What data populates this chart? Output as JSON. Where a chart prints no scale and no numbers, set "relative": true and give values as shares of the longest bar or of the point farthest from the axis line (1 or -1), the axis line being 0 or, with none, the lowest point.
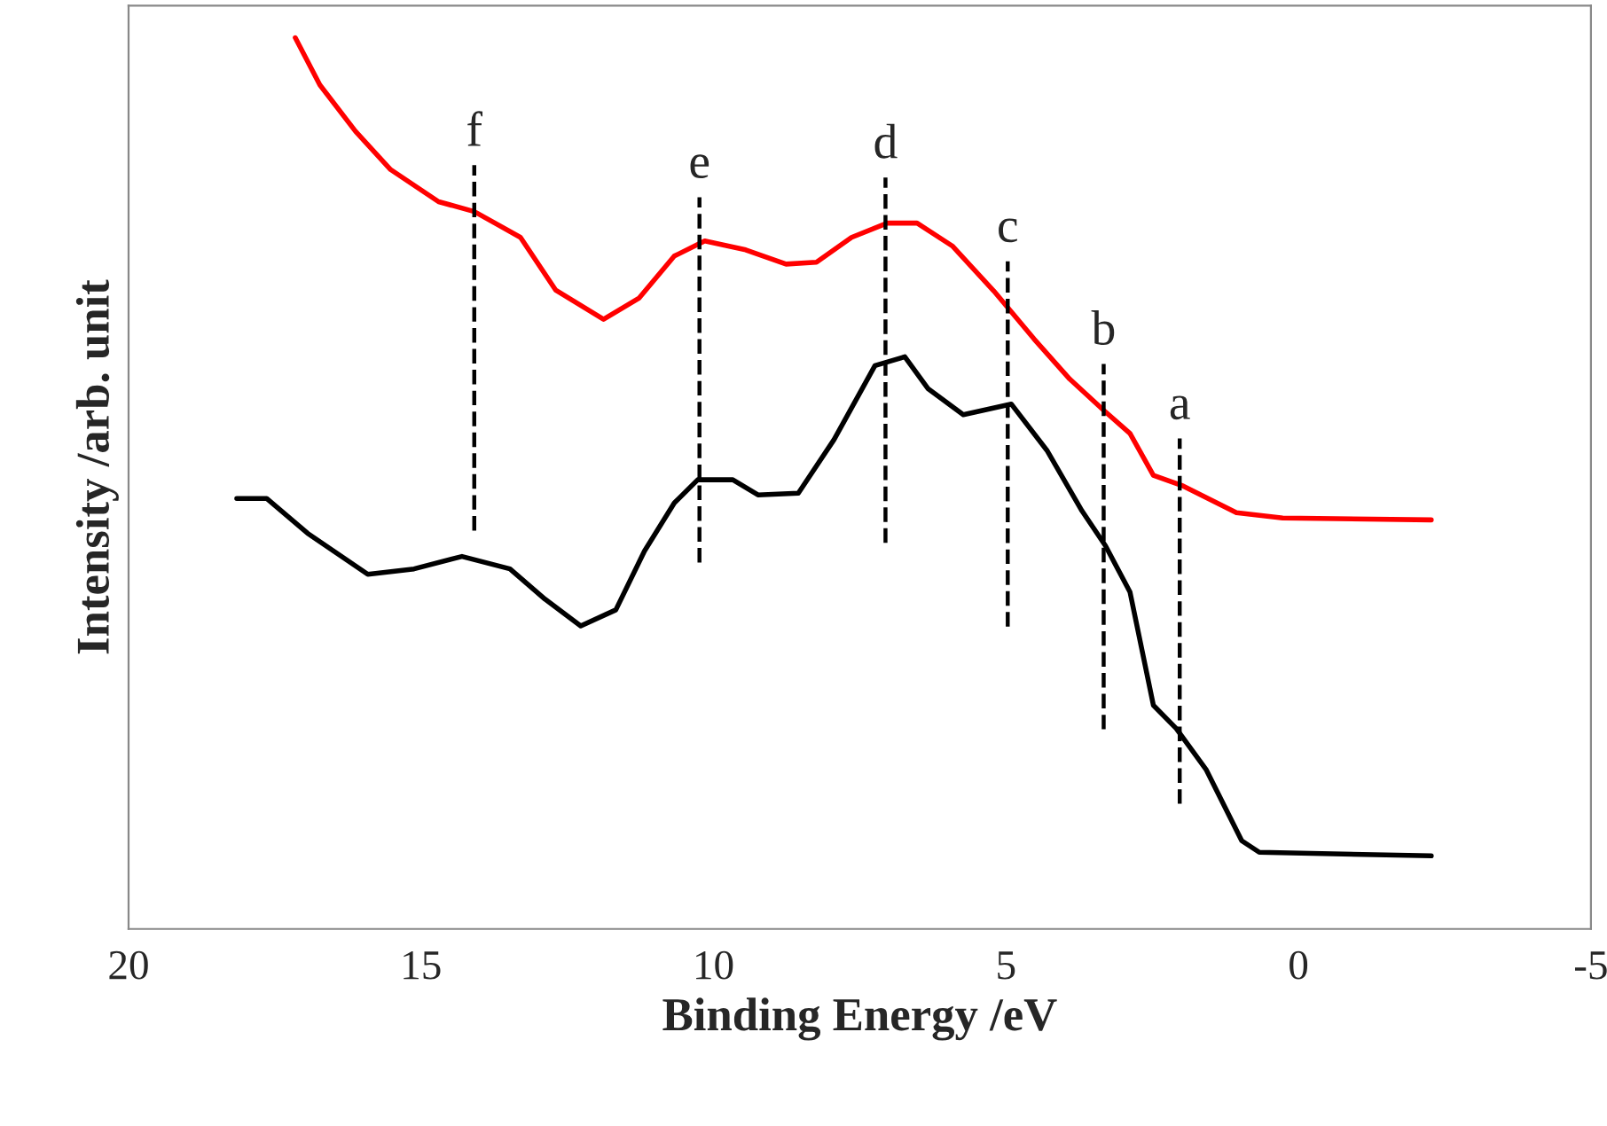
{
  "chart_data": {
    "type": "line",
    "relative": true,
    "xlabel": "Binding Energy /eV",
    "ylabel": "Intensity /arb. unit",
    "xlim": [
      20,
      -5
    ],
    "xticks": [
      20,
      15,
      10,
      5,
      0,
      -5
    ],
    "grid": false,
    "legend": false,
    "tick_labels": "x",
    "line_style": "solid",
    "marker": "none",
    "series": [
      {
        "color": "#ff0000",
        "x": [
          17.15,
          16.73,
          16.12,
          15.52,
          14.7,
          14.09,
          13.3,
          12.7,
          11.88,
          11.27,
          10.67,
          10.15,
          9.45,
          8.76,
          8.24,
          7.64,
          7.03,
          6.52,
          5.91,
          5.21,
          4.52,
          3.91,
          3.33,
          2.88,
          2.48,
          1.97,
          1.06,
          0.27,
          -2.27
        ],
        "values": [
          1.0,
          0.947,
          0.895,
          0.852,
          0.816,
          0.805,
          0.776,
          0.717,
          0.684,
          0.708,
          0.755,
          0.772,
          0.762,
          0.746,
          0.748,
          0.776,
          0.792,
          0.792,
          0.766,
          0.716,
          0.662,
          0.617,
          0.582,
          0.556,
          0.509,
          0.497,
          0.467,
          0.461,
          0.459
        ]
      },
      {
        "color": "#000000",
        "x": [
          18.15,
          17.64,
          16.94,
          15.91,
          15.12,
          14.3,
          13.48,
          12.88,
          12.27,
          11.67,
          11.18,
          10.67,
          10.27,
          9.67,
          9.24,
          8.55,
          7.94,
          7.24,
          6.73,
          6.33,
          5.73,
          4.91,
          4.3,
          3.7,
          3.3,
          2.88,
          2.48,
          2.09,
          1.58,
          0.97,
          0.67,
          -2.27
        ],
        "values": [
          0.483,
          0.483,
          0.444,
          0.398,
          0.404,
          0.418,
          0.404,
          0.37,
          0.34,
          0.358,
          0.424,
          0.478,
          0.504,
          0.504,
          0.487,
          0.489,
          0.549,
          0.632,
          0.642,
          0.606,
          0.577,
          0.589,
          0.537,
          0.469,
          0.43,
          0.378,
          0.251,
          0.225,
          0.179,
          0.099,
          0.086,
          0.082
        ]
      }
    ],
    "ref_lines": [
      {
        "axis": "x",
        "value": 14.09,
        "label": "f",
        "color": "#000000",
        "line_style": "dashed"
      },
      {
        "axis": "x",
        "value": 10.24,
        "label": "e",
        "color": "#000000",
        "line_style": "dashed"
      },
      {
        "axis": "x",
        "value": 7.06,
        "label": "d",
        "color": "#000000",
        "line_style": "dashed"
      },
      {
        "axis": "x",
        "value": 4.97,
        "label": "c",
        "color": "#000000",
        "line_style": "dashed"
      },
      {
        "axis": "x",
        "value": 3.33,
        "label": "b",
        "color": "#000000",
        "line_style": "dashed"
      },
      {
        "axis": "x",
        "value": 2.03,
        "label": "a",
        "color": "#000000",
        "line_style": "dashed"
      }
    ]
  }
}
